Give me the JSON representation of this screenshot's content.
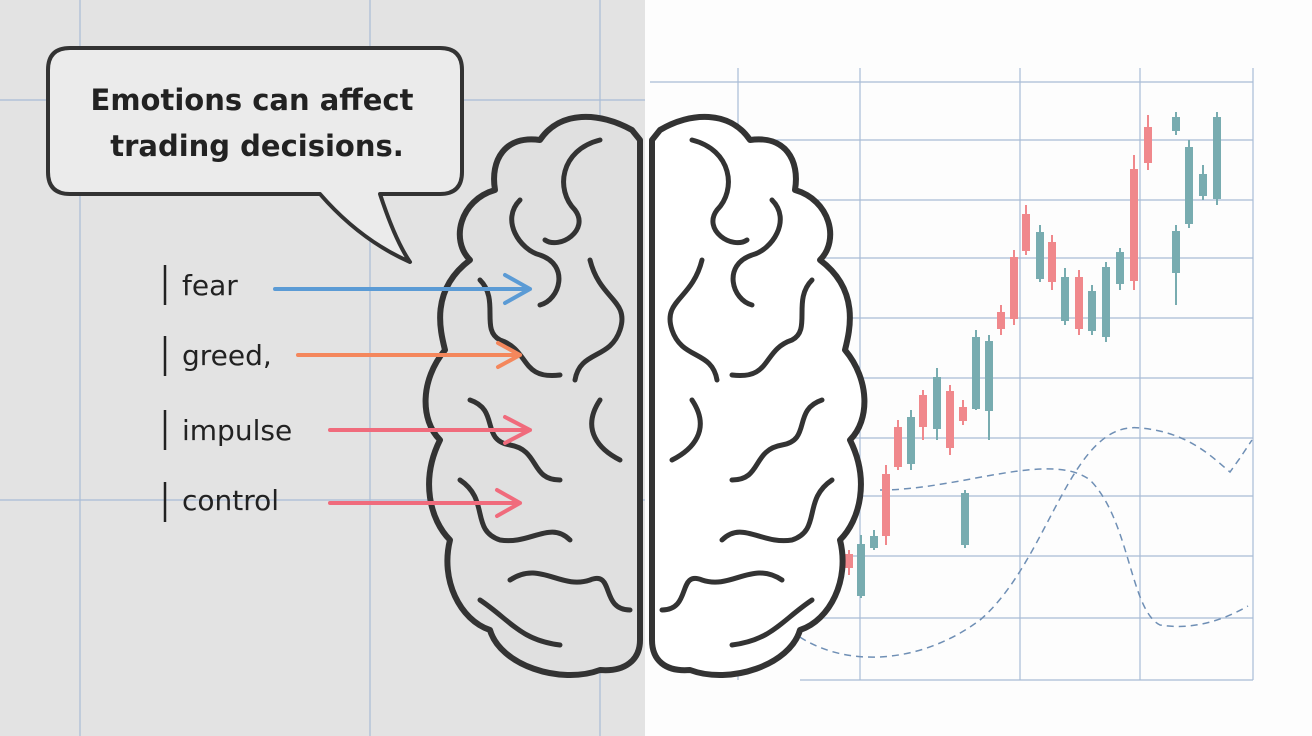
{
  "speech_bubble": {
    "lines": [
      "Emotions can affect",
      "trading decisions."
    ]
  },
  "labels": [
    "fear",
    "greed,",
    "impulse",
    "control"
  ]
}
